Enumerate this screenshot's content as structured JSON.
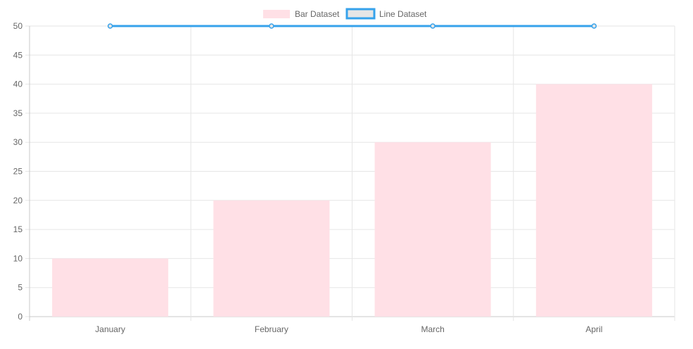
{
  "chart_data": {
    "type": "bar",
    "categories": [
      "January",
      "February",
      "March",
      "April"
    ],
    "series": [
      {
        "name": "Bar Dataset",
        "type": "bar",
        "values": [
          10,
          20,
          30,
          40
        ],
        "color": "#ffe0e6"
      },
      {
        "name": "Line Dataset",
        "type": "line",
        "values": [
          50,
          50,
          50,
          50
        ],
        "color": "#36a2eb",
        "fill": "#e6e6e6"
      }
    ],
    "y_ticks": [
      "0",
      "5",
      "10",
      "15",
      "20",
      "25",
      "30",
      "35",
      "40",
      "45",
      "50"
    ],
    "ylim": [
      0,
      50
    ],
    "grid": true,
    "legend_position": "top-center"
  }
}
